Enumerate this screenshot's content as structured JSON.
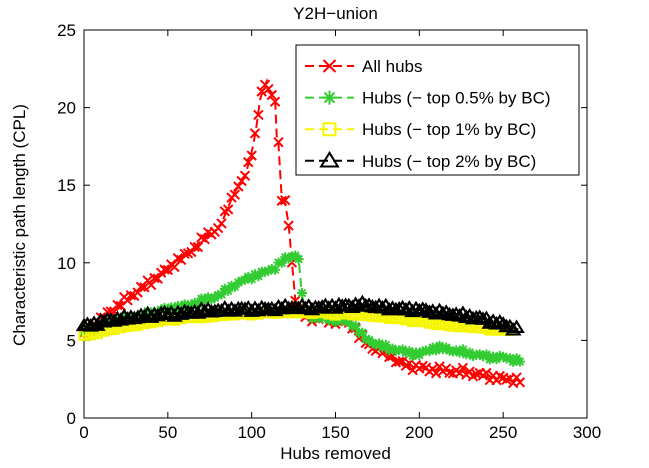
{
  "chart_data": {
    "type": "line",
    "title": "Y2H−union",
    "xlabel": "Hubs removed",
    "ylabel": "Characteristic path length (CPL)",
    "xlim": [
      0,
      300
    ],
    "ylim": [
      0,
      25
    ],
    "xticks": [
      0,
      50,
      100,
      150,
      200,
      250,
      300
    ],
    "yticks": [
      0,
      5,
      10,
      15,
      20,
      25
    ],
    "grid": false,
    "legend_position": "upper right",
    "marker_step": 2,
    "series": [
      {
        "name": "All hubs",
        "color": "#ff0000",
        "marker": "x",
        "wobble": 0.18,
        "points": [
          [
            0,
            5.4
          ],
          [
            5,
            5.9
          ],
          [
            10,
            6.3
          ],
          [
            15,
            6.8
          ],
          [
            20,
            7.2
          ],
          [
            25,
            7.6
          ],
          [
            30,
            8.0
          ],
          [
            35,
            8.4
          ],
          [
            40,
            8.8
          ],
          [
            45,
            9.2
          ],
          [
            50,
            9.6
          ],
          [
            55,
            10.1
          ],
          [
            60,
            10.4
          ],
          [
            65,
            10.9
          ],
          [
            70,
            11.4
          ],
          [
            75,
            11.9
          ],
          [
            80,
            12.2
          ],
          [
            83,
            12.8
          ],
          [
            86,
            13.6
          ],
          [
            90,
            14.6
          ],
          [
            93,
            15.0
          ],
          [
            96,
            15.6
          ],
          [
            99,
            16.7
          ],
          [
            101,
            17.6
          ],
          [
            103,
            18.9
          ],
          [
            105,
            20.5
          ],
          [
            107,
            21.2
          ],
          [
            109,
            21.7
          ],
          [
            110,
            21.2
          ],
          [
            112,
            20.8
          ],
          [
            114,
            20.6
          ],
          [
            115,
            18.0
          ],
          [
            116,
            17.6
          ],
          [
            118,
            14.1
          ],
          [
            120,
            13.8
          ],
          [
            122,
            12.5
          ],
          [
            126,
            7.6
          ],
          [
            130,
            6.7
          ],
          [
            134,
            6.5
          ],
          [
            138,
            6.4
          ],
          [
            142,
            6.4
          ],
          [
            146,
            6.3
          ],
          [
            150,
            6.3
          ],
          [
            154,
            6.2
          ],
          [
            158,
            6.1
          ],
          [
            161,
            5.9
          ],
          [
            164,
            5.3
          ],
          [
            168,
            4.9
          ],
          [
            171,
            4.6
          ],
          [
            175,
            4.4
          ],
          [
            179,
            4.2
          ],
          [
            183,
            4.1
          ],
          [
            186,
            3.7
          ],
          [
            190,
            3.5
          ],
          [
            194,
            3.4
          ],
          [
            198,
            3.3
          ],
          [
            203,
            3.2
          ],
          [
            208,
            3.1
          ],
          [
            213,
            3.1
          ],
          [
            218,
            3.0
          ],
          [
            224,
            3.0
          ],
          [
            230,
            2.9
          ],
          [
            236,
            2.8
          ],
          [
            241,
            2.7
          ],
          [
            246,
            2.6
          ],
          [
            251,
            2.5
          ],
          [
            256,
            2.5
          ],
          [
            260,
            2.4
          ]
        ]
      },
      {
        "name": "Hubs (− top 0.5% by BC)",
        "color": "#33cc33",
        "marker": "asterisk",
        "wobble": 0.12,
        "points": [
          [
            0,
            5.5
          ],
          [
            6,
            5.8
          ],
          [
            12,
            6.0
          ],
          [
            18,
            6.2
          ],
          [
            24,
            6.3
          ],
          [
            30,
            6.5
          ],
          [
            36,
            6.7
          ],
          [
            42,
            6.8
          ],
          [
            48,
            7.0
          ],
          [
            54,
            7.1
          ],
          [
            60,
            7.2
          ],
          [
            66,
            7.4
          ],
          [
            72,
            7.6
          ],
          [
            78,
            7.8
          ],
          [
            82,
            8.0
          ],
          [
            86,
            8.3
          ],
          [
            90,
            8.6
          ],
          [
            94,
            8.8
          ],
          [
            98,
            9.0
          ],
          [
            102,
            9.2
          ],
          [
            106,
            9.3
          ],
          [
            110,
            9.5
          ],
          [
            114,
            9.7
          ],
          [
            117,
            10.0
          ],
          [
            120,
            10.2
          ],
          [
            123,
            10.4
          ],
          [
            126,
            10.5
          ],
          [
            128,
            10.3
          ],
          [
            130,
            7.9
          ],
          [
            133,
            6.7
          ],
          [
            137,
            6.5
          ],
          [
            142,
            6.4
          ],
          [
            147,
            6.4
          ],
          [
            152,
            6.3
          ],
          [
            157,
            6.2
          ],
          [
            161,
            6.0
          ],
          [
            164,
            5.6
          ],
          [
            167,
            5.2
          ],
          [
            170,
            5.0
          ],
          [
            174,
            4.8
          ],
          [
            178,
            4.6
          ],
          [
            182,
            4.5
          ],
          [
            186,
            4.4
          ],
          [
            190,
            4.3
          ],
          [
            195,
            4.2
          ],
          [
            200,
            4.1
          ],
          [
            204,
            4.3
          ],
          [
            208,
            4.5
          ],
          [
            213,
            4.5
          ],
          [
            218,
            4.4
          ],
          [
            223,
            4.3
          ],
          [
            228,
            4.2
          ],
          [
            233,
            4.1
          ],
          [
            238,
            4.0
          ],
          [
            244,
            3.9
          ],
          [
            250,
            3.9
          ],
          [
            255,
            3.8
          ],
          [
            260,
            3.7
          ]
        ]
      },
      {
        "name": "Hubs (− top 1% by BC)",
        "color": "#f5f500",
        "marker": "square",
        "wobble": 0.05,
        "points": [
          [
            0,
            5.3
          ],
          [
            8,
            5.5
          ],
          [
            16,
            5.7
          ],
          [
            24,
            5.9
          ],
          [
            32,
            6.0
          ],
          [
            40,
            6.2
          ],
          [
            48,
            6.3
          ],
          [
            56,
            6.4
          ],
          [
            64,
            6.5
          ],
          [
            72,
            6.5
          ],
          [
            80,
            6.6
          ],
          [
            90,
            6.7
          ],
          [
            100,
            6.7
          ],
          [
            110,
            6.8
          ],
          [
            120,
            6.8
          ],
          [
            130,
            6.8
          ],
          [
            140,
            6.8
          ],
          [
            150,
            6.7
          ],
          [
            160,
            6.7
          ],
          [
            170,
            6.6
          ],
          [
            180,
            6.5
          ],
          [
            188,
            6.4
          ],
          [
            195,
            6.3
          ],
          [
            202,
            6.2
          ],
          [
            209,
            6.1
          ],
          [
            216,
            6.0
          ],
          [
            223,
            5.9
          ],
          [
            230,
            5.9
          ],
          [
            237,
            5.8
          ],
          [
            244,
            5.7
          ],
          [
            250,
            5.7
          ],
          [
            255,
            5.6
          ]
        ]
      },
      {
        "name": "Hubs (− top 2% by BC)",
        "color": "#000000",
        "marker": "triangle-up",
        "wobble": 0.1,
        "points": [
          [
            0,
            5.9
          ],
          [
            8,
            6.1
          ],
          [
            16,
            6.3
          ],
          [
            24,
            6.4
          ],
          [
            32,
            6.5
          ],
          [
            40,
            6.6
          ],
          [
            48,
            6.7
          ],
          [
            56,
            6.7
          ],
          [
            64,
            6.8
          ],
          [
            72,
            6.9
          ],
          [
            80,
            6.9
          ],
          [
            90,
            7.0
          ],
          [
            100,
            7.0
          ],
          [
            110,
            7.0
          ],
          [
            120,
            7.1
          ],
          [
            130,
            7.1
          ],
          [
            140,
            7.1
          ],
          [
            150,
            7.2
          ],
          [
            158,
            7.2
          ],
          [
            165,
            7.3
          ],
          [
            172,
            7.2
          ],
          [
            180,
            7.1
          ],
          [
            188,
            7.0
          ],
          [
            196,
            7.0
          ],
          [
            204,
            6.9
          ],
          [
            211,
            6.8
          ],
          [
            218,
            6.7
          ],
          [
            225,
            6.6
          ],
          [
            231,
            6.5
          ],
          [
            237,
            6.4
          ],
          [
            243,
            6.2
          ],
          [
            248,
            6.1
          ],
          [
            252,
            5.9
          ],
          [
            256,
            5.8
          ],
          [
            259,
            5.7
          ]
        ]
      }
    ]
  }
}
